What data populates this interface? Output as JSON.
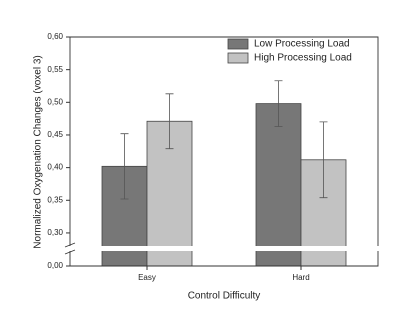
{
  "chart_data": {
    "type": "bar",
    "x_label": "Control Difficulty",
    "y_label": "Normalized Oxygenation Changes (voxel 3)",
    "categories": [
      "Easy",
      "Hard"
    ],
    "series": [
      {
        "name": "Low Processing Load",
        "color": "#777777",
        "values": [
          0.402,
          0.498
        ],
        "errors": [
          0.05,
          0.035
        ]
      },
      {
        "name": "High Processing Load",
        "color": "#c2c2c2",
        "values": [
          0.471,
          0.412
        ],
        "errors": [
          0.042,
          0.058
        ]
      }
    ],
    "ylim": [
      0,
      0.6
    ],
    "ybreak": [
      0.02,
      0.28
    ],
    "yticks": [
      {
        "value": 0,
        "label": "0,00"
      },
      {
        "value": 0.3,
        "label": "0,30"
      },
      {
        "value": 0.35,
        "label": "0,35"
      },
      {
        "value": 0.4,
        "label": "0,40"
      },
      {
        "value": 0.45,
        "label": "0,45"
      },
      {
        "value": 0.5,
        "label": "0,50"
      },
      {
        "value": 0.55,
        "label": "0,55"
      },
      {
        "value": 0.6,
        "label": "0,60"
      }
    ],
    "legend": "top-right"
  }
}
